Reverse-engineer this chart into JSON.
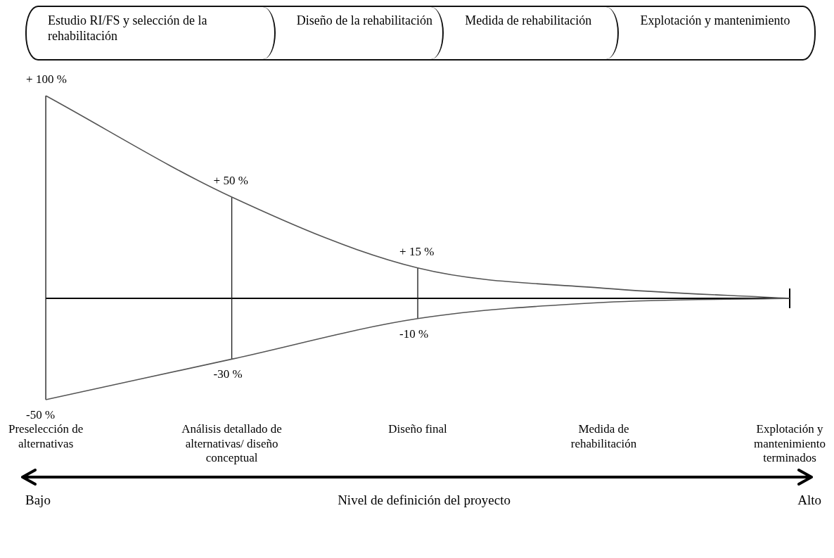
{
  "chart_data": {
    "type": "line",
    "xlabel": "Nivel de definición del proyecto",
    "categories": [
      "Preselección de alternativas",
      "Análisis detallado de alternativas/ diseño conceptual",
      "Diseño final",
      "Medida de rehabilitación",
      "Explotación y mantenimiento terminados"
    ],
    "series": [
      {
        "color": "#555555",
        "values": [
          100,
          50,
          15,
          5,
          0
        ],
        "value_labels": [
          "+ 100 %",
          "+ 50 %",
          "+ 15 %",
          null,
          null
        ]
      },
      {
        "color": "#555555",
        "values": [
          -50,
          -30,
          -10,
          -2,
          0
        ],
        "value_labels": [
          "-50 %",
          "-30 %",
          "-10 %",
          null,
          null
        ]
      }
    ],
    "tick_labels": "x",
    "grid": false,
    "legend": false,
    "marker": "none",
    "line_style": "solid",
    "ref_lines": [
      {
        "axis": "y",
        "value": 0,
        "color": "#000000"
      }
    ],
    "annotations": [
      "Estudio RI/FS y selección de la rehabilitación",
      "Diseño de la rehabilitación",
      "Medida de rehabilitación",
      "Explotación y mantenimiento",
      "Bajo",
      "Alto"
    ]
  }
}
